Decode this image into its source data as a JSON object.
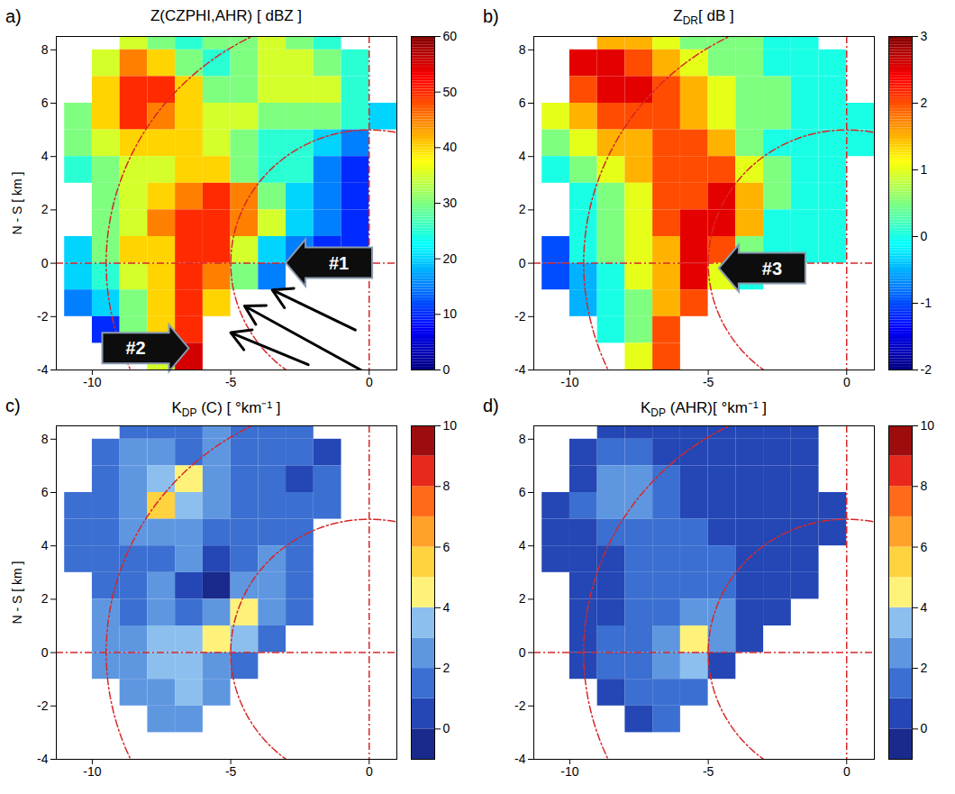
{
  "chart_data": [
    {
      "type": "heatmap",
      "panel": "a)",
      "title": {
        "text": "Z(CZPHI,AHR) [ dBZ ]"
      },
      "y_label": "N - S [ km ]",
      "xlim": [
        -11.3,
        1
      ],
      "ylim": [
        -4,
        8.5
      ],
      "xticks": [
        -10,
        -5,
        0
      ],
      "yticks": [
        -4,
        -2,
        0,
        2,
        4,
        6,
        8
      ],
      "x_edges": [
        -11,
        -10,
        -9,
        -8,
        -7,
        -6,
        -5,
        -4,
        -3,
        -2,
        -1,
        0,
        1
      ],
      "y_edges": [
        9,
        8,
        7,
        6,
        5,
        4,
        3,
        2,
        1,
        0,
        -1,
        -2,
        -3,
        -4
      ],
      "cells": [
        [
          null,
          null,
          35,
          30,
          25,
          30,
          30,
          35,
          30,
          25,
          null,
          null
        ],
        [
          null,
          35,
          45,
          40,
          30,
          25,
          30,
          35,
          35,
          30,
          25,
          null
        ],
        [
          null,
          40,
          50,
          50,
          40,
          30,
          30,
          35,
          35,
          35,
          25,
          null
        ],
        [
          30,
          40,
          50,
          45,
          40,
          35,
          35,
          30,
          30,
          30,
          25,
          20
        ],
        [
          30,
          35,
          40,
          40,
          40,
          35,
          30,
          25,
          25,
          20,
          15,
          null
        ],
        [
          25,
          30,
          35,
          35,
          40,
          40,
          30,
          25,
          25,
          15,
          10,
          null
        ],
        [
          null,
          30,
          35,
          40,
          45,
          50,
          45,
          30,
          20,
          15,
          10,
          null
        ],
        [
          null,
          30,
          35,
          45,
          50,
          50,
          45,
          35,
          20,
          15,
          10,
          null
        ],
        [
          20,
          30,
          40,
          40,
          50,
          50,
          35,
          20,
          15,
          10,
          10,
          null
        ],
        [
          20,
          25,
          35,
          40,
          50,
          45,
          30,
          15,
          null,
          null,
          null,
          null
        ],
        [
          15,
          20,
          30,
          40,
          50,
          40,
          null,
          null,
          null,
          null,
          null,
          null
        ],
        [
          null,
          10,
          30,
          40,
          50,
          null,
          null,
          null,
          null,
          null,
          null,
          null
        ],
        [
          null,
          null,
          null,
          35,
          55,
          null,
          null,
          null,
          null,
          null,
          null,
          null
        ]
      ],
      "color": "jet",
      "colorbar": {
        "range": [
          0,
          60
        ],
        "ticks": [
          0,
          10,
          20,
          30,
          40,
          50,
          60
        ]
      },
      "reference_lines": {
        "x": 0,
        "y": 0
      },
      "range_rings": [
        5,
        9.5
      ],
      "annotations": [
        {
          "text": "#1",
          "x": -3,
          "y": 0,
          "direction": "left"
        },
        {
          "text": "#2",
          "x": -6.5,
          "y": -3.2,
          "direction": "right"
        }
      ],
      "arrows": [
        {
          "x1": -0.5,
          "y1": -2.5,
          "x2": -3.5,
          "y2": -1.0
        },
        {
          "x1": -0.3,
          "y1": -4.0,
          "x2": -4.5,
          "y2": -1.6
        },
        {
          "x1": -2.2,
          "y1": -3.8,
          "x2": -5.0,
          "y2": -2.6
        }
      ]
    },
    {
      "type": "heatmap",
      "panel": "b)",
      "title": {
        "text": "Z",
        "subscript": "DR",
        "suffix": "[ dB ]"
      },
      "xlim": [
        -11.3,
        1
      ],
      "ylim": [
        -4,
        8.5
      ],
      "xticks": [
        -10,
        -5,
        0
      ],
      "yticks": [
        -4,
        -2,
        0,
        2,
        4,
        6,
        8
      ],
      "x_edges": [
        -11,
        -10,
        -9,
        -8,
        -7,
        -6,
        -5,
        -4,
        -3,
        -2,
        -1,
        0,
        1
      ],
      "y_edges": [
        9,
        8,
        7,
        6,
        5,
        4,
        3,
        2,
        1,
        0,
        -1,
        -2,
        -3,
        -4
      ],
      "cells": [
        [
          null,
          null,
          1.5,
          1.5,
          1,
          0.5,
          0.5,
          0.5,
          0,
          0,
          null,
          null
        ],
        [
          null,
          2.5,
          2.5,
          2,
          1.5,
          1,
          0.5,
          0.5,
          0,
          0,
          0,
          null
        ],
        [
          null,
          2,
          2.5,
          2.5,
          2,
          1.5,
          1,
          0.5,
          0.5,
          0,
          0,
          null
        ],
        [
          1,
          1.5,
          2,
          2,
          2,
          1.5,
          1,
          0.5,
          0.5,
          0,
          0,
          0
        ],
        [
          0.5,
          1,
          1.5,
          1.5,
          2,
          2,
          1.5,
          0.5,
          0,
          0,
          0,
          0
        ],
        [
          0,
          0.5,
          1,
          1.5,
          2,
          2,
          2,
          1,
          0.5,
          0,
          0,
          null
        ],
        [
          null,
          0,
          0.5,
          1,
          2,
          2,
          2.5,
          1.5,
          0.5,
          0,
          0,
          null
        ],
        [
          null,
          0,
          0.5,
          1,
          2,
          2.5,
          2.5,
          1.5,
          0,
          0,
          0,
          null
        ],
        [
          -1,
          0,
          0.5,
          1,
          1.5,
          2.5,
          2,
          0.5,
          0,
          0,
          0,
          null
        ],
        [
          -1,
          -0.5,
          0,
          1,
          1.5,
          2.5,
          1,
          0,
          null,
          null,
          null,
          null
        ],
        [
          null,
          -0.5,
          0,
          0.5,
          1.5,
          2,
          null,
          null,
          null,
          null,
          null,
          null
        ],
        [
          null,
          null,
          0,
          0.5,
          2,
          null,
          null,
          null,
          null,
          null,
          null,
          null
        ],
        [
          null,
          null,
          null,
          1,
          2,
          null,
          null,
          null,
          null,
          null,
          null,
          null
        ]
      ],
      "color": "jet",
      "colorbar": {
        "range": [
          -2,
          3
        ],
        "ticks": [
          -2,
          -1,
          0,
          1,
          2,
          3
        ]
      },
      "reference_lines": {
        "x": 0,
        "y": 0
      },
      "range_rings": [
        5,
        9.5
      ],
      "annotations": [
        {
          "text": "#3",
          "x": -4.6,
          "y": -0.2,
          "direction": "left"
        }
      ]
    },
    {
      "type": "heatmap",
      "panel": "c)",
      "title": {
        "text": "K",
        "subscript": "DP",
        "suffix": " (C) [ °km⁻¹ ]"
      },
      "y_label": "N - S [ km ]",
      "xlim": [
        -11.3,
        1
      ],
      "ylim": [
        -4,
        8.5
      ],
      "xticks": [
        -10,
        -5,
        0
      ],
      "yticks": [
        -4,
        -2,
        0,
        2,
        4,
        6,
        8
      ],
      "x_edges": [
        -11,
        -10,
        -9,
        -8,
        -7,
        -6,
        -5,
        -4,
        -3,
        -2,
        -1,
        0,
        1
      ],
      "y_edges": [
        9,
        8,
        7,
        6,
        5,
        4,
        3,
        2,
        1,
        0,
        -1,
        -2,
        -3,
        -4
      ],
      "cells": [
        [
          null,
          null,
          1,
          1,
          1,
          2,
          1,
          1,
          1,
          null,
          null,
          null
        ],
        [
          null,
          1,
          2,
          2,
          1,
          2,
          1,
          1,
          1,
          0,
          null,
          null
        ],
        [
          null,
          1,
          2,
          3,
          4,
          2,
          1,
          1,
          0,
          1,
          null,
          null
        ],
        [
          1,
          1,
          2,
          5,
          3,
          2,
          1,
          1,
          1,
          1,
          null,
          null
        ],
        [
          1,
          1,
          2,
          2,
          2,
          1,
          1,
          1,
          1,
          null,
          null,
          null
        ],
        [
          1,
          1,
          1,
          1,
          2,
          0,
          1,
          2,
          1,
          null,
          null,
          null
        ],
        [
          null,
          1,
          1,
          2,
          0,
          -1,
          2,
          2,
          1,
          null,
          null,
          null
        ],
        [
          null,
          2,
          1,
          2,
          1,
          2,
          4,
          2,
          1,
          null,
          null,
          null
        ],
        [
          null,
          2,
          2,
          3,
          3,
          4,
          3,
          1,
          null,
          null,
          null,
          null
        ],
        [
          null,
          2,
          2,
          3,
          3,
          2,
          1,
          null,
          null,
          null,
          null,
          null
        ],
        [
          null,
          null,
          2,
          2,
          3,
          2,
          null,
          null,
          null,
          null,
          null,
          null
        ],
        [
          null,
          null,
          null,
          2,
          2,
          null,
          null,
          null,
          null,
          null,
          null,
          null
        ],
        [
          null,
          null,
          null,
          null,
          null,
          null,
          null,
          null,
          null,
          null,
          null,
          null
        ]
      ],
      "color": "steps",
      "colorbar": {
        "range": [
          -1,
          10
        ],
        "ticks": [
          0,
          2,
          4,
          6,
          8,
          10
        ],
        "colors": [
          "#1a2a8c",
          "#2447b5",
          "#3b6fd1",
          "#5e97e0",
          "#8cbfee",
          "#fff27a",
          "#ffd23f",
          "#ffa12b",
          "#ff6a1a",
          "#e8281c",
          "#9e0d0d"
        ]
      },
      "reference_lines": {
        "x": 0,
        "y": 0
      },
      "range_rings": [
        5,
        9.5
      ]
    },
    {
      "type": "heatmap",
      "panel": "d)",
      "title": {
        "text": "K",
        "subscript": "DP",
        "suffix": " (AHR)[ °km⁻¹ ]"
      },
      "xlim": [
        -11.3,
        1
      ],
      "ylim": [
        -4,
        8.5
      ],
      "xticks": [
        -10,
        -5,
        0
      ],
      "yticks": [
        -4,
        -2,
        0,
        2,
        4,
        6,
        8
      ],
      "x_edges": [
        -11,
        -10,
        -9,
        -8,
        -7,
        -6,
        -5,
        -4,
        -3,
        -2,
        -1,
        0,
        1
      ],
      "y_edges": [
        9,
        8,
        7,
        6,
        5,
        4,
        3,
        2,
        1,
        0,
        -1,
        -2,
        -3,
        -4
      ],
      "cells": [
        [
          null,
          null,
          0,
          0,
          0,
          0,
          0,
          0,
          0,
          0,
          null,
          null
        ],
        [
          null,
          0,
          1,
          1,
          0,
          0,
          0,
          0,
          0,
          0,
          null,
          null
        ],
        [
          null,
          0,
          2,
          2,
          1,
          0,
          0,
          0,
          0,
          0,
          null,
          null
        ],
        [
          0,
          1,
          2,
          2,
          1,
          0,
          0,
          0,
          0,
          0,
          0,
          null
        ],
        [
          0,
          0,
          1,
          1,
          1,
          1,
          0,
          0,
          0,
          0,
          0,
          null
        ],
        [
          0,
          0,
          0,
          1,
          1,
          1,
          1,
          0,
          0,
          0,
          null,
          null
        ],
        [
          null,
          0,
          0,
          1,
          1,
          1,
          1,
          0,
          0,
          0,
          null,
          null
        ],
        [
          null,
          0,
          0,
          1,
          1,
          2,
          2,
          0,
          0,
          null,
          null,
          null
        ],
        [
          null,
          0,
          1,
          1,
          2,
          4,
          2,
          0,
          null,
          null,
          null,
          null
        ],
        [
          null,
          0,
          1,
          1,
          2,
          3,
          0,
          null,
          null,
          null,
          null,
          null
        ],
        [
          null,
          null,
          0,
          1,
          1,
          1,
          null,
          null,
          null,
          null,
          null,
          null
        ],
        [
          null,
          null,
          null,
          0,
          1,
          null,
          null,
          null,
          null,
          null,
          null,
          null
        ],
        [
          null,
          null,
          null,
          null,
          null,
          null,
          null,
          null,
          null,
          null,
          null,
          null
        ]
      ],
      "color": "steps",
      "colorbar": {
        "range": [
          -1,
          10
        ],
        "ticks": [
          0,
          2,
          4,
          6,
          8,
          10
        ],
        "colors": [
          "#1a2a8c",
          "#2447b5",
          "#3b6fd1",
          "#5e97e0",
          "#8cbfee",
          "#fff27a",
          "#ffd23f",
          "#ffa12b",
          "#ff6a1a",
          "#e8281c",
          "#9e0d0d"
        ]
      },
      "reference_lines": {
        "x": 0,
        "y": 0
      },
      "range_rings": [
        5,
        9.5
      ]
    }
  ]
}
